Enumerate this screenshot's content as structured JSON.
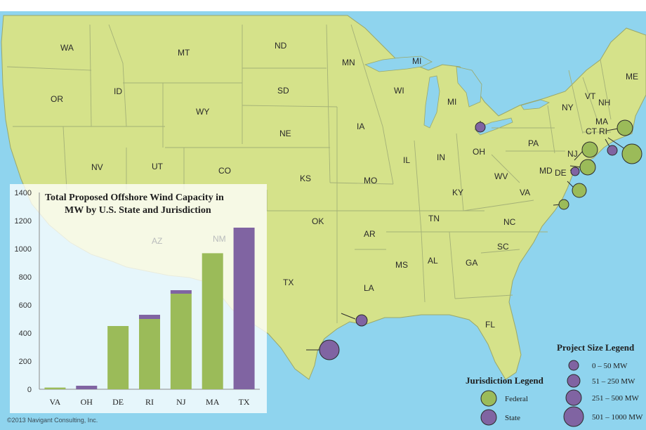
{
  "colors": {
    "ocean": "#8fd4ee",
    "land": "#d5e28a",
    "border": "#9aa86a",
    "federal": "#9bbb59",
    "state": "#8064a2"
  },
  "state_labels": [
    {
      "id": "wa",
      "text": "WA"
    },
    {
      "id": "or",
      "text": "OR"
    },
    {
      "id": "id",
      "text": "ID"
    },
    {
      "id": "mt",
      "text": "MT"
    },
    {
      "id": "wy",
      "text": "WY"
    },
    {
      "id": "nd",
      "text": "ND"
    },
    {
      "id": "sd",
      "text": "SD"
    },
    {
      "id": "ne",
      "text": "NE"
    },
    {
      "id": "nv",
      "text": "NV"
    },
    {
      "id": "ut",
      "text": "UT"
    },
    {
      "id": "co",
      "text": "CO"
    },
    {
      "id": "ks",
      "text": "KS"
    },
    {
      "id": "ok",
      "text": "OK"
    },
    {
      "id": "tx",
      "text": "TX"
    },
    {
      "id": "mn",
      "text": "MN"
    },
    {
      "id": "ia",
      "text": "IA"
    },
    {
      "id": "mo",
      "text": "MO"
    },
    {
      "id": "ar",
      "text": "AR"
    },
    {
      "id": "la",
      "text": "LA"
    },
    {
      "id": "ms",
      "text": "MS"
    },
    {
      "id": "al",
      "text": "AL"
    },
    {
      "id": "ga",
      "text": "GA"
    },
    {
      "id": "fl",
      "text": "FL"
    },
    {
      "id": "sc",
      "text": "SC"
    },
    {
      "id": "nc",
      "text": "NC"
    },
    {
      "id": "tn",
      "text": "TN"
    },
    {
      "id": "ky",
      "text": "KY"
    },
    {
      "id": "il",
      "text": "IL"
    },
    {
      "id": "in",
      "text": "IN"
    },
    {
      "id": "oh",
      "text": "OH"
    },
    {
      "id": "mi-up",
      "text": "MI"
    },
    {
      "id": "mi",
      "text": "MI"
    },
    {
      "id": "wi",
      "text": "WI"
    },
    {
      "id": "wv",
      "text": "WV"
    },
    {
      "id": "va",
      "text": "VA"
    },
    {
      "id": "pa",
      "text": "PA"
    },
    {
      "id": "ny",
      "text": "NY"
    },
    {
      "id": "nj",
      "text": "NJ"
    },
    {
      "id": "md",
      "text": "MD"
    },
    {
      "id": "de",
      "text": "DE"
    },
    {
      "id": "vt",
      "text": "VT"
    },
    {
      "id": "nh",
      "text": "NH"
    },
    {
      "id": "me",
      "text": "ME"
    },
    {
      "id": "ma",
      "text": "MA"
    },
    {
      "id": "ct",
      "text": "CT"
    },
    {
      "id": "ri",
      "text": "RI"
    }
  ],
  "faint_labels": [
    {
      "id": "az",
      "text": "AZ"
    },
    {
      "id": "nm",
      "text": "NM"
    }
  ],
  "projects": [
    {
      "id": "ohio-lake-erie",
      "jurisdiction": "State",
      "size_class": "0 – 50 MW"
    },
    {
      "id": "massachusetts",
      "jurisdiction": "Federal",
      "size_class": "51 – 250 MW"
    },
    {
      "id": "rhode-island-state",
      "jurisdiction": "State",
      "size_class": "0 – 50 MW"
    },
    {
      "id": "rhode-island-federal",
      "jurisdiction": "Federal",
      "size_class": "251 – 500 MW"
    },
    {
      "id": "new-jersey-north",
      "jurisdiction": "Federal",
      "size_class": "51 – 250 MW"
    },
    {
      "id": "new-jersey-south",
      "jurisdiction": "Federal",
      "size_class": "51 – 250 MW"
    },
    {
      "id": "new-jersey-state",
      "jurisdiction": "State",
      "size_class": "0 – 50 MW"
    },
    {
      "id": "delaware",
      "jurisdiction": "Federal",
      "size_class": "51 – 250 MW"
    },
    {
      "id": "virginia",
      "jurisdiction": "Federal",
      "size_class": "0 – 50 MW"
    },
    {
      "id": "texas-east",
      "jurisdiction": "State",
      "size_class": "0 – 50 MW"
    },
    {
      "id": "texas-south",
      "jurisdiction": "State",
      "size_class": "251 – 500 MW"
    }
  ],
  "jurisdiction_legend": {
    "title": "Jurisdiction  Legend",
    "items": [
      {
        "label": "Federal",
        "color": "#9bbb59"
      },
      {
        "label": "State",
        "color": "#8064a2"
      }
    ]
  },
  "size_legend": {
    "title": "Project Size Legend",
    "items": [
      "0 – 50 MW",
      "51 – 250 MW",
      "251 – 500 MW",
      "501 – 1000 MW"
    ]
  },
  "credit": "©2013 Navigant Consulting, Inc.",
  "chart_data": {
    "type": "bar",
    "stacked": true,
    "title": "Total Proposed Offshore Wind Capacity in MW by U.S. State and Jurisdiction",
    "title_lines": [
      "Total Proposed Offshore Wind Capacity in",
      "MW by U.S. State and Jurisdiction"
    ],
    "categories": [
      "VA",
      "OH",
      "DE",
      "RI",
      "NJ",
      "MA",
      "TX"
    ],
    "series": [
      {
        "name": "Federal",
        "color": "#9bbb59",
        "values": [
          12,
          0,
          450,
          500,
          680,
          968,
          0
        ]
      },
      {
        "name": "State",
        "color": "#8064a2",
        "values": [
          0,
          25,
          0,
          30,
          25,
          0,
          1150
        ]
      }
    ],
    "ylim": [
      0,
      1400
    ],
    "yticks": [
      0,
      200,
      400,
      600,
      800,
      1000,
      1200,
      1400
    ],
    "grid": false
  }
}
